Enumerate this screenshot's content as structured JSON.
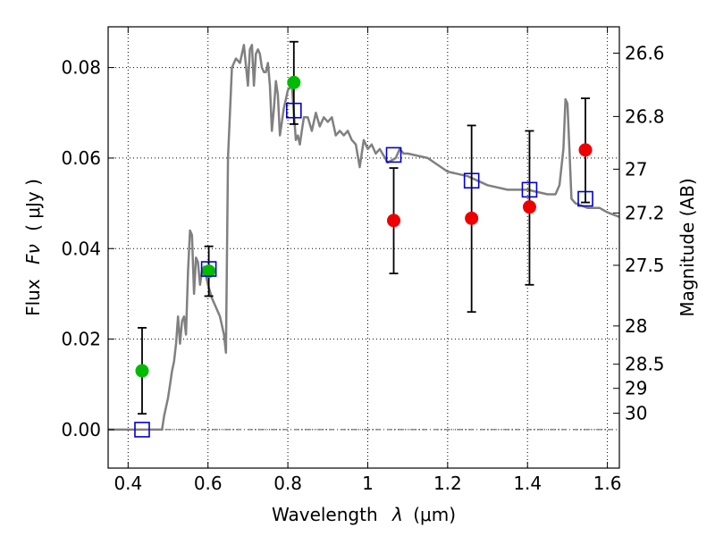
{
  "chart_data": {
    "type": "scatter",
    "xlabel_prefix": "Wavelength",
    "xlabel_var": "λ",
    "xlabel_unit": "(μm)",
    "ylabel_prefix": "Flux",
    "ylabel_var": "Fν",
    "ylabel_unit": "( μJy )",
    "y2label": "Magnitude (AB)",
    "xlim": [
      0.35,
      1.63
    ],
    "ylim": [
      -0.0085,
      0.089
    ],
    "xticks": [
      {
        "v": 0.4,
        "label": "0.4"
      },
      {
        "v": 0.6,
        "label": "0.6"
      },
      {
        "v": 0.8,
        "label": "0.8"
      },
      {
        "v": 1.0,
        "label": "1"
      },
      {
        "v": 1.2,
        "label": "1.2"
      },
      {
        "v": 1.4,
        "label": "1.4"
      },
      {
        "v": 1.6,
        "label": "1.6"
      }
    ],
    "yticks": [
      {
        "v": 0.0,
        "label": "0.00"
      },
      {
        "v": 0.02,
        "label": "0.02"
      },
      {
        "v": 0.04,
        "label": "0.04"
      },
      {
        "v": 0.06,
        "label": "0.06"
      },
      {
        "v": 0.08,
        "label": "0.08"
      }
    ],
    "magnitude_ticks": [
      {
        "mag": 26.6,
        "label": "26.6"
      },
      {
        "mag": 26.8,
        "label": "26.8"
      },
      {
        "mag": 27.0,
        "label": "27"
      },
      {
        "mag": 27.2,
        "label": "27.2"
      },
      {
        "mag": 27.5,
        "label": "27.5"
      },
      {
        "mag": 28.0,
        "label": "28"
      },
      {
        "mag": 28.5,
        "label": "28.5"
      },
      {
        "mag": 29.0,
        "label": "29"
      },
      {
        "mag": 30.0,
        "label": "30"
      }
    ],
    "colors": {
      "model": "#808080",
      "green": "#00bb00",
      "red": "#ee0000",
      "square": "#0000cc",
      "grid": "#000000",
      "errorbar": "#000000"
    },
    "model_spectrum": {
      "x": [
        0.35,
        0.48,
        0.485,
        0.49,
        0.5,
        0.505,
        0.51,
        0.515,
        0.52,
        0.525,
        0.53,
        0.535,
        0.54,
        0.545,
        0.55,
        0.555,
        0.56,
        0.565,
        0.57,
        0.575,
        0.58,
        0.585,
        0.59,
        0.6,
        0.61,
        0.62,
        0.63,
        0.64,
        0.645,
        0.65,
        0.655,
        0.66,
        0.67,
        0.68,
        0.69,
        0.7,
        0.705,
        0.71,
        0.715,
        0.72,
        0.725,
        0.73,
        0.735,
        0.74,
        0.745,
        0.75,
        0.755,
        0.76,
        0.765,
        0.77,
        0.775,
        0.78,
        0.79,
        0.8,
        0.81,
        0.82,
        0.825,
        0.83,
        0.835,
        0.84,
        0.85,
        0.86,
        0.87,
        0.88,
        0.89,
        0.9,
        0.91,
        0.92,
        0.93,
        0.94,
        0.95,
        0.96,
        0.97,
        0.98,
        0.99,
        1.0,
        1.01,
        1.02,
        1.03,
        1.05,
        1.07,
        1.08,
        1.09,
        1.1,
        1.15,
        1.2,
        1.25,
        1.3,
        1.35,
        1.4,
        1.45,
        1.47,
        1.48,
        1.49,
        1.495,
        1.5,
        1.505,
        1.51,
        1.52,
        1.55,
        1.58,
        1.6,
        1.63
      ],
      "y": [
        0,
        0,
        0,
        0.003,
        0.007,
        0.01,
        0.013,
        0.015,
        0.019,
        0.025,
        0.019,
        0.024,
        0.025,
        0.021,
        0.035,
        0.044,
        0.043,
        0.03,
        0.038,
        0.037,
        0.032,
        0.035,
        0.036,
        0.032,
        0.029,
        0.027,
        0.025,
        0.021,
        0.017,
        0.06,
        0.07,
        0.08,
        0.082,
        0.081,
        0.085,
        0.076,
        0.084,
        0.085,
        0.076,
        0.083,
        0.084,
        0.083,
        0.08,
        0.079,
        0.079,
        0.081,
        0.076,
        0.066,
        0.071,
        0.077,
        0.074,
        0.065,
        0.071,
        0.075,
        0.076,
        0.064,
        0.065,
        0.063,
        0.066,
        0.069,
        0.069,
        0.066,
        0.07,
        0.067,
        0.069,
        0.068,
        0.069,
        0.065,
        0.066,
        0.065,
        0.066,
        0.064,
        0.063,
        0.058,
        0.064,
        0.062,
        0.063,
        0.061,
        0.062,
        0.059,
        0.06,
        0.062,
        0.061,
        0.061,
        0.06,
        0.057,
        0.056,
        0.054,
        0.053,
        0.053,
        0.052,
        0.052,
        0.054,
        0.062,
        0.073,
        0.072,
        0.062,
        0.051,
        0.05,
        0.049,
        0.049,
        0.048,
        0.047
      ]
    },
    "green_points": [
      {
        "x": 0.435,
        "y": 0.013,
        "yerr_low": 0.0035,
        "yerr_high": 0.0225
      },
      {
        "x": 0.602,
        "y": 0.035,
        "yerr_low": 0.0295,
        "yerr_high": 0.0405
      },
      {
        "x": 0.815,
        "y": 0.0767,
        "yerr_low": 0.0675,
        "yerr_high": 0.0857
      }
    ],
    "red_points": [
      {
        "x": 1.065,
        "y": 0.0462,
        "yerr_low": 0.0345,
        "yerr_high": 0.0578
      },
      {
        "x": 1.26,
        "y": 0.0467,
        "yerr_low": 0.026,
        "yerr_high": 0.0672
      },
      {
        "x": 1.405,
        "y": 0.0492,
        "yerr_low": 0.032,
        "yerr_high": 0.066
      },
      {
        "x": 1.545,
        "y": 0.0618,
        "yerr_low": 0.0502,
        "yerr_high": 0.0732
      }
    ],
    "model_squares": [
      {
        "x": 0.435,
        "y": 0.0
      },
      {
        "x": 0.602,
        "y": 0.0355
      },
      {
        "x": 0.815,
        "y": 0.0705
      },
      {
        "x": 1.065,
        "y": 0.0607
      },
      {
        "x": 1.26,
        "y": 0.055
      },
      {
        "x": 1.405,
        "y": 0.053
      },
      {
        "x": 1.545,
        "y": 0.051
      }
    ]
  }
}
